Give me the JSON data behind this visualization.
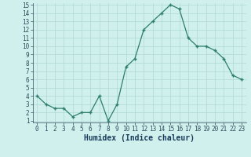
{
  "x": [
    0,
    1,
    2,
    3,
    4,
    5,
    6,
    7,
    8,
    9,
    10,
    11,
    12,
    13,
    14,
    15,
    16,
    17,
    18,
    19,
    20,
    21,
    22,
    23
  ],
  "y": [
    4,
    3,
    2.5,
    2.5,
    1.5,
    2,
    2,
    4,
    1,
    3,
    7.5,
    8.5,
    12,
    13,
    14,
    15,
    14.5,
    11,
    10,
    10,
    9.5,
    8.5,
    6.5,
    6
  ],
  "line_color": "#2e7d6e",
  "bg_color": "#cff0ec",
  "grid_color": "#aed8d2",
  "xlabel": "Humidex (Indice chaleur)",
  "ylim": [
    1,
    15
  ],
  "xlim": [
    -0.5,
    23.5
  ],
  "yticks": [
    1,
    2,
    3,
    4,
    5,
    6,
    7,
    8,
    9,
    10,
    11,
    12,
    13,
    14,
    15
  ],
  "xticks": [
    0,
    1,
    2,
    3,
    4,
    5,
    6,
    7,
    8,
    9,
    10,
    11,
    12,
    13,
    14,
    15,
    16,
    17,
    18,
    19,
    20,
    21,
    22,
    23
  ],
  "tick_fontsize": 5.5,
  "xlabel_fontsize": 7,
  "marker_size": 2.5,
  "linewidth": 0.9
}
